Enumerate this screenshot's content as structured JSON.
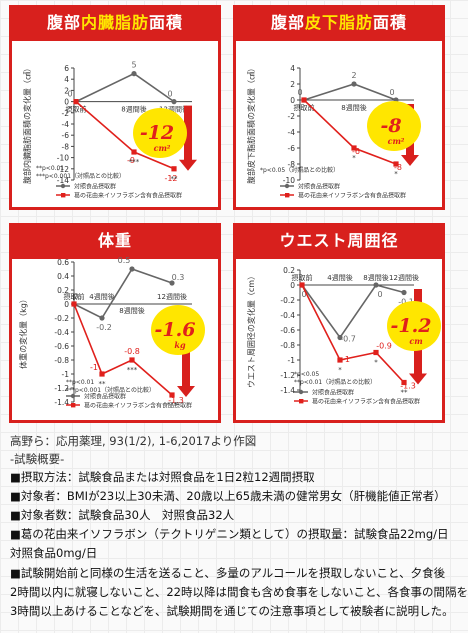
{
  "chart_data": [
    {
      "type": "line",
      "title_parts": [
        "腹部",
        "内臓脂肪",
        "面積"
      ],
      "ylabel": "腹部内臓脂肪面積の変化量（㎠）",
      "categories": [
        "摂取前",
        "8週間後",
        "12週間後"
      ],
      "ylim": [
        -14,
        6
      ],
      "yticks": [
        "6",
        "4",
        "2",
        "0",
        "-2",
        "-4",
        "-6",
        "-8",
        "-10",
        "-12",
        "-14"
      ],
      "series": [
        {
          "name": "対照食品摂取群",
          "values": [
            0,
            5,
            0
          ],
          "labels": [
            "0",
            "5",
            "0"
          ]
        },
        {
          "name": "葛の花由来イソフラボン含有食品摂取群",
          "values": [
            0,
            -9,
            -12
          ],
          "labels": [
            "0",
            "-9",
            "-12"
          ]
        }
      ],
      "significance": [
        "***",
        "**"
      ],
      "notes": [
        "**p<0.01",
        "***p<0.001（対照品との比較）"
      ],
      "badge": {
        "value": "-12",
        "unit": "cm²"
      }
    },
    {
      "type": "line",
      "title_parts": [
        "腹部",
        "皮下脂肪",
        "面積"
      ],
      "ylabel": "腹部皮下脂肪面積の変化量（㎠）",
      "categories": [
        "摂取前",
        "8週間後",
        "12週間後"
      ],
      "ylim": [
        -10,
        4
      ],
      "yticks": [
        "4",
        "2",
        "0",
        "-2",
        "-4",
        "-6",
        "-8",
        "-10"
      ],
      "series": [
        {
          "name": "対照食品摂取群",
          "values": [
            0,
            2,
            0
          ],
          "labels": [
            "0",
            "2",
            "0"
          ]
        },
        {
          "name": "葛の花由来イソフラボン含有食品摂取群",
          "values": [
            0,
            -6,
            -8
          ],
          "labels": [
            "0",
            "-6",
            "-8"
          ]
        }
      ],
      "significance": [
        "*",
        "*"
      ],
      "notes": [
        "*p<0.05（対照品との比較）"
      ],
      "badge": {
        "value": "-8",
        "unit": "cm²"
      }
    },
    {
      "type": "line",
      "title_parts": [
        "",
        "体重",
        ""
      ],
      "ylabel": "体重の変化量（kg）",
      "categories": [
        "摂取前",
        "4週間後",
        "8週間後",
        "12週間後"
      ],
      "ylim": [
        -1.4,
        0.6
      ],
      "yticks": [
        "0.6",
        "0.4",
        "0.2",
        "0",
        "-0.2",
        "-0.4",
        "-0.6",
        "-0.8",
        "-1",
        "-1.2",
        "-1.4"
      ],
      "series": [
        {
          "name": "対照食品摂取群",
          "values": [
            0,
            -0.2,
            0.5,
            0.3
          ],
          "labels": [
            "0",
            "-0.2",
            "0.5",
            "0.3"
          ]
        },
        {
          "name": "葛の花由来イソフラボン含有食品摂取群",
          "values": [
            0,
            -1.0,
            -0.8,
            -1.3
          ],
          "labels": [
            "0",
            "-1",
            "-0.8",
            "-1.3"
          ]
        }
      ],
      "significance": [
        "**",
        "***",
        "***"
      ],
      "notes": [
        "**p<0.01",
        "***p<0.001（対照品との比較）"
      ],
      "badge": {
        "value": "-1.6",
        "unit": "kg"
      }
    },
    {
      "type": "line",
      "title_parts": [
        "",
        "ウエスト周囲径",
        ""
      ],
      "ylabel": "ウエスト周囲径の変化量（cm）",
      "categories": [
        "摂取前",
        "4週間後",
        "8週間後",
        "12週間後"
      ],
      "ylim": [
        -1.4,
        0.2
      ],
      "yticks": [
        "0.2",
        "0",
        "-0.2",
        "-0.4",
        "-0.6",
        "-0.8",
        "-1",
        "-1.2",
        "-1.4"
      ],
      "series": [
        {
          "name": "対照食品摂取群",
          "values": [
            0,
            -0.7,
            0,
            -0.1
          ],
          "labels": [
            "0",
            "-0.7",
            "0",
            "-0.1"
          ]
        },
        {
          "name": "葛の花由来イソフラボン含有食品摂取群",
          "values": [
            0,
            -1.0,
            -0.9,
            -1.3
          ],
          "labels": [
            "0",
            "-1",
            "-0.9",
            "-1.3"
          ]
        }
      ],
      "significance": [
        "*",
        "*",
        "**"
      ],
      "notes": [
        "*p<0.05",
        "**p<0.01（対照品との比較）"
      ],
      "badge": {
        "value": "-1.2",
        "unit": "cm"
      }
    }
  ],
  "colors": {
    "control": "#666666",
    "test": "#e0201c",
    "frame": "#d8201d",
    "badge_bg": "#ffe600",
    "badge_text": "#e0201c"
  },
  "source": "高野ら：応用薬理, 93(1/2), 1-6,2017より作図",
  "summary_heading": "-試験概要-",
  "summary": [
    "■摂取方法：試験食品または対照食品を1日2粒12週間摂取",
    "■対象者：BMIが23以上30未満、20歳以上65歳未満の健常男女（肝機能値正常者）",
    "■対象者数：試験食品30人　対照食品32人",
    "■葛の花由来イソフラボン（テクトリゲニン類として）の摂取量：試験食品22mg/日",
    "対照食品0mg/日",
    "■試験開始前と同様の生活を送ること、多量のアルコールを摂取しないこと、夕食後",
    "2時間以内に就寝しないこと、22時以降は間食も含め食事をしないこと、各食事の間隔を",
    "3時間以上あけることなどを、試験期間を通じての注意事項として被験者に説明した。"
  ]
}
